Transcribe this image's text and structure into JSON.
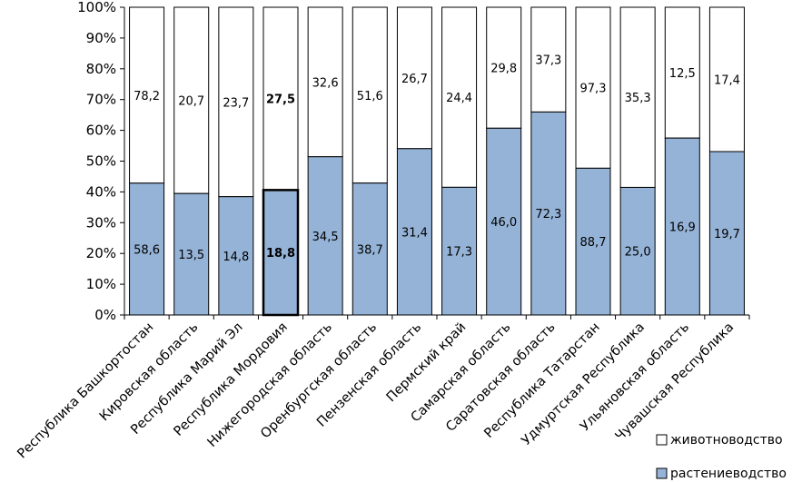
{
  "chart_data": {
    "type": "bar",
    "stacked": "percent",
    "categories": [
      "Республика Башкортостан",
      "Кировская область",
      "Республика Марий Эл",
      "Республика Мордовия",
      "Нижегородская область",
      "Оренбургская область",
      "Пензенская область",
      "Пермский край",
      "Самарская область",
      "Саратовская область",
      "Республика Татарстан",
      "Удмуртская Республика",
      "Ульяновская область",
      "Чувашская Республика"
    ],
    "highlighted_category": "Республика Мордовия",
    "series": [
      {
        "name": "растениеводство",
        "color": "#95b3d7",
        "values": [
          58.6,
          13.5,
          14.8,
          18.8,
          34.5,
          38.7,
          31.4,
          17.3,
          46.0,
          72.3,
          88.7,
          25.0,
          16.9,
          19.7
        ],
        "labels": [
          "58,6",
          "13,5",
          "14,8",
          "18,8",
          "34,5",
          "38,7",
          "31,4",
          "17,3",
          "46,0",
          "72,3",
          "88,7",
          "25,0",
          "16,9",
          "19,7"
        ]
      },
      {
        "name": "животноводство",
        "color": "#ffffff",
        "values": [
          78.2,
          20.7,
          23.7,
          27.5,
          32.6,
          51.6,
          26.7,
          24.4,
          29.8,
          37.3,
          97.3,
          35.3,
          12.5,
          17.4
        ],
        "labels": [
          "78,2",
          "20,7",
          "23,7",
          "27,5",
          "32,6",
          "51,6",
          "26,7",
          "24,4",
          "29,8",
          "37,3",
          "97,3",
          "35,3",
          "12,5",
          "17,4"
        ]
      }
    ],
    "yticks": [
      "0%",
      "10%",
      "20%",
      "30%",
      "40%",
      "50%",
      "60%",
      "70%",
      "80%",
      "90%",
      "100%"
    ],
    "ylim": [
      0,
      100
    ],
    "ylabel": "",
    "xlabel": "",
    "title": "",
    "legend_position": "bottom-right",
    "grid": false
  }
}
